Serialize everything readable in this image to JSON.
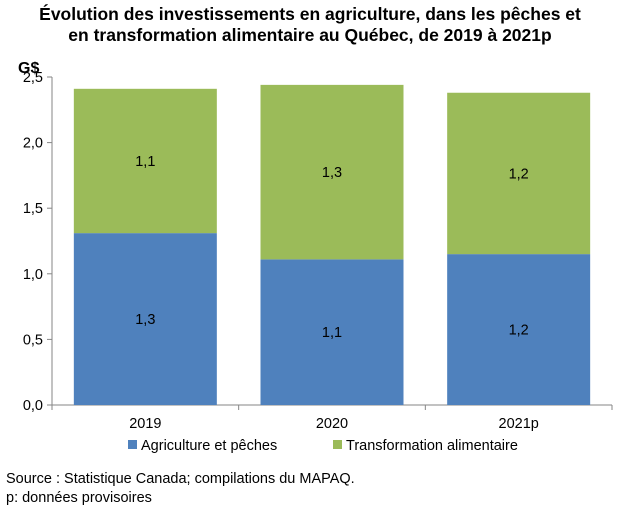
{
  "chart_data": {
    "type": "bar",
    "stacked": true,
    "title_lines": [
      "Évolution des investissements en agriculture, dans les pêches et",
      "en transformation alimentaire au Québec, de 2019 à 2021p"
    ],
    "ylabel": "G$",
    "xlabel": "",
    "categories": [
      "2019",
      "2020",
      "2021p"
    ],
    "series": [
      {
        "name": "Agriculture et pêches",
        "values": [
          1.31,
          1.11,
          1.15
        ],
        "labels": [
          "1,3",
          "1,1",
          "1,2"
        ],
        "color": "#4f81bd"
      },
      {
        "name": "Transformation alimentaire",
        "values": [
          1.1,
          1.33,
          1.23
        ],
        "labels": [
          "1,1",
          "1,3",
          "1,2"
        ],
        "color": "#9bbb59"
      }
    ],
    "ylim": [
      0,
      2.5
    ],
    "yticks": [
      0,
      0.5,
      1.0,
      1.5,
      2.0,
      2.5
    ],
    "ytick_labels": [
      "0,0",
      "0,5",
      "1,0",
      "1,5",
      "2,0",
      "2,5"
    ],
    "grid": false,
    "legend_position": "bottom"
  },
  "footer": {
    "source": "Source : Statistique Canada; compilations du MAPAQ.",
    "note": "p: données provisoires"
  }
}
